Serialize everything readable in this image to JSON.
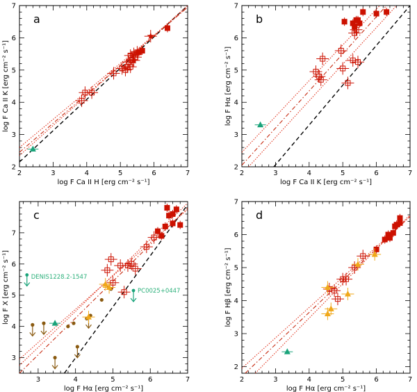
{
  "colors": {
    "detection": "#cc1100",
    "dotted": "#e0301a",
    "dashdot": "#c62a10",
    "dashed": "#000000",
    "green": "#1aa37a",
    "brown": "#8a5a10",
    "gold": "#f0a81a"
  },
  "chart_data": [
    {
      "type": "scatter",
      "panel": "a",
      "xlabel": "log F Ca II H [erg cm⁻² s⁻¹]",
      "ylabel": "log F Ca II K [erg cm⁻² s⁻¹]",
      "xlim": [
        2,
        7
      ],
      "ylim": [
        2,
        7
      ],
      "xticks": [
        2,
        3,
        4,
        5,
        6,
        7
      ],
      "yticks": [
        2,
        3,
        4,
        5,
        6,
        7
      ],
      "open_squares": [
        [
          3.85,
          4.05
        ],
        [
          3.95,
          4.3
        ],
        [
          4.15,
          4.3
        ],
        [
          4.8,
          4.9
        ],
        [
          5.05,
          5.05
        ],
        [
          5.15,
          5.0
        ],
        [
          5.2,
          5.1
        ],
        [
          5.25,
          5.25
        ],
        [
          5.3,
          5.45
        ],
        [
          5.35,
          5.3
        ],
        [
          5.4,
          5.5
        ],
        [
          5.45,
          5.4
        ],
        [
          5.5,
          5.55
        ],
        [
          5.3,
          5.1
        ]
      ],
      "filled_squares": [
        [
          5.55,
          5.55
        ],
        [
          5.65,
          5.6
        ],
        [
          6.4,
          6.3
        ]
      ],
      "stars": [
        [
          5.9,
          6.05
        ],
        [
          5.4,
          5.3
        ]
      ],
      "green_triangles": [
        [
          2.4,
          2.55
        ]
      ],
      "green_upper": [],
      "brown_dots": [],
      "gold_triangles": [],
      "lines": {
        "dashed": [
          [
            2.0,
            2.15
          ],
          [
            7.0,
            7.0
          ]
        ],
        "dashdot": [
          [
            2.0,
            2.45
          ],
          [
            7.0,
            6.95
          ]
        ],
        "dotted_hi": [
          [
            2.0,
            2.6
          ],
          [
            7.0,
            6.95
          ]
        ],
        "dotted_lo": [
          [
            2.0,
            2.35
          ],
          [
            7.0,
            7.0
          ]
        ]
      }
    },
    {
      "type": "scatter",
      "panel": "b",
      "xlabel": "log F Ca II K [erg cm⁻² s⁻¹]",
      "ylabel": "log F Hα [erg cm⁻² s⁻¹]",
      "xlim": [
        2,
        7
      ],
      "ylim": [
        2,
        7
      ],
      "xticks": [
        2,
        3,
        4,
        5,
        6,
        7
      ],
      "yticks": [
        2,
        3,
        4,
        5,
        6,
        7
      ],
      "open_squares": [
        [
          4.2,
          4.95
        ],
        [
          4.3,
          4.8
        ],
        [
          4.35,
          4.7
        ],
        [
          4.4,
          5.35
        ],
        [
          4.95,
          5.6
        ],
        [
          5.0,
          5.05
        ],
        [
          5.15,
          4.6
        ],
        [
          5.3,
          5.3
        ],
        [
          5.45,
          5.25
        ],
        [
          5.35,
          6.15
        ],
        [
          5.4,
          6.25
        ]
      ],
      "filled_squares": [
        [
          5.05,
          6.5
        ],
        [
          5.3,
          6.45
        ],
        [
          5.35,
          6.35
        ],
        [
          5.4,
          6.55
        ],
        [
          5.45,
          6.55
        ],
        [
          5.5,
          6.45
        ],
        [
          5.6,
          6.8
        ],
        [
          6.0,
          6.75
        ],
        [
          6.3,
          6.8
        ]
      ],
      "stars": [],
      "green_triangles": [
        [
          2.55,
          3.3
        ]
      ],
      "green_upper": [],
      "brown_dots": [],
      "gold_triangles": [],
      "lines": {
        "dashed": [
          [
            2.95,
            2.0
          ],
          [
            7.0,
            7.0
          ]
        ],
        "dashdot": [
          [
            2.0,
            2.05
          ],
          [
            6.3,
            7.0
          ]
        ],
        "dotted_hi": [
          [
            2.0,
            2.45
          ],
          [
            6.1,
            7.0
          ]
        ],
        "dotted_lo": [
          [
            2.2,
            2.0
          ],
          [
            6.6,
            7.0
          ]
        ]
      }
    },
    {
      "type": "scatter",
      "panel": "c",
      "xlabel": "log F Hα [erg cm⁻² s⁻¹]",
      "ylabel": "log F X [erg cm⁻² s⁻¹]",
      "xlim": [
        2.5,
        7
      ],
      "ylim": [
        2.5,
        8
      ],
      "xticks": [
        3,
        4,
        5,
        6,
        7
      ],
      "yticks": [
        3,
        4,
        5,
        6,
        7
      ],
      "annotations": [
        {
          "text": "DENIS1228.2-1547",
          "x": 2.7,
          "y": 5.6
        },
        {
          "text": "PC0025+0447",
          "x": 5.55,
          "y": 5.15
        }
      ],
      "open_squares": [
        [
          4.85,
          5.8
        ],
        [
          4.95,
          6.15
        ],
        [
          5.0,
          5.4
        ],
        [
          5.2,
          5.95
        ],
        [
          5.3,
          5.1
        ],
        [
          5.4,
          5.95
        ],
        [
          5.5,
          6.0
        ],
        [
          5.6,
          5.85
        ],
        [
          5.9,
          6.55
        ],
        [
          6.1,
          6.85
        ]
      ],
      "filled_squares": [
        [
          6.2,
          7.05
        ],
        [
          6.3,
          6.9
        ],
        [
          6.4,
          7.2
        ],
        [
          6.45,
          7.8
        ],
        [
          6.5,
          7.55
        ],
        [
          6.6,
          7.3
        ],
        [
          6.6,
          7.6
        ],
        [
          6.7,
          7.75
        ],
        [
          6.8,
          7.25
        ]
      ],
      "stars": [],
      "green_triangles": [
        [
          3.45,
          4.1
        ]
      ],
      "green_upper": [
        [
          2.7,
          5.65
        ],
        [
          5.55,
          5.15
        ]
      ],
      "brown_dots": [
        [
          2.85,
          4.05
        ],
        [
          3.15,
          4.1
        ],
        [
          3.45,
          3.0
        ],
        [
          3.8,
          4.0
        ],
        [
          3.95,
          4.1
        ],
        [
          4.05,
          3.35
        ],
        [
          4.3,
          4.25
        ],
        [
          4.4,
          4.35
        ],
        [
          4.7,
          4.85
        ],
        [
          4.95,
          5.2
        ]
      ],
      "brown_upper": [
        [
          2.85,
          4.05
        ],
        [
          3.15,
          4.1
        ],
        [
          3.45,
          3.0
        ],
        [
          4.05,
          3.35
        ],
        [
          4.35,
          4.3
        ]
      ],
      "gold_triangles": [
        [
          4.35,
          4.3
        ],
        [
          4.8,
          5.35
        ],
        [
          4.9,
          5.25
        ]
      ],
      "lines": {
        "dashed": [
          [
            3.7,
            2.5
          ],
          [
            7.0,
            7.9
          ]
        ],
        "dashdot": [
          [
            2.5,
            2.5
          ],
          [
            7.0,
            7.8
          ]
        ],
        "dotted_hi": [
          [
            2.5,
            2.95
          ],
          [
            7.0,
            7.75
          ]
        ],
        "dotted_lo": [
          [
            2.5,
            2.75
          ],
          [
            7.0,
            7.95
          ]
        ]
      }
    },
    {
      "type": "scatter",
      "panel": "d",
      "xlabel": "log F Hα [erg cm⁻² s⁻¹]",
      "ylabel": "log F Hβ [erg cm⁻² s⁻¹]",
      "xlim": [
        2,
        7
      ],
      "ylim": [
        1.8,
        7
      ],
      "xticks": [
        2,
        3,
        4,
        5,
        6,
        7
      ],
      "yticks": [
        2,
        3,
        4,
        5,
        6,
        7
      ],
      "open_squares": [
        [
          4.6,
          4.35
        ],
        [
          4.75,
          4.3
        ],
        [
          4.85,
          4.05
        ],
        [
          5.0,
          4.65
        ],
        [
          5.1,
          4.65
        ],
        [
          5.35,
          5.0
        ],
        [
          5.6,
          5.35
        ]
      ],
      "filled_squares": [
        [
          6.0,
          5.55
        ],
        [
          6.25,
          5.85
        ],
        [
          6.35,
          6.0
        ],
        [
          6.4,
          5.9
        ],
        [
          6.5,
          6.05
        ],
        [
          6.55,
          6.25
        ],
        [
          6.6,
          6.3
        ],
        [
          6.7,
          6.35
        ],
        [
          6.7,
          6.5
        ]
      ],
      "stars": [],
      "green_triangles": [
        [
          3.35,
          2.45
        ]
      ],
      "green_upper": [],
      "brown_dots": [],
      "gold_triangles": [
        [
          4.55,
          3.6
        ],
        [
          4.55,
          4.4
        ],
        [
          4.65,
          3.75
        ],
        [
          5.15,
          4.2
        ],
        [
          5.45,
          5.1
        ],
        [
          5.95,
          5.4
        ]
      ],
      "lines": {
        "dashed": [],
        "dashdot": [
          [
            2.1,
            1.8
          ],
          [
            7.0,
            6.55
          ]
        ],
        "dotted_hi": [
          [
            2.0,
            1.95
          ],
          [
            7.0,
            6.55
          ]
        ],
        "dotted_lo": [
          [
            2.4,
            1.8
          ],
          [
            7.0,
            6.6
          ]
        ]
      }
    }
  ]
}
